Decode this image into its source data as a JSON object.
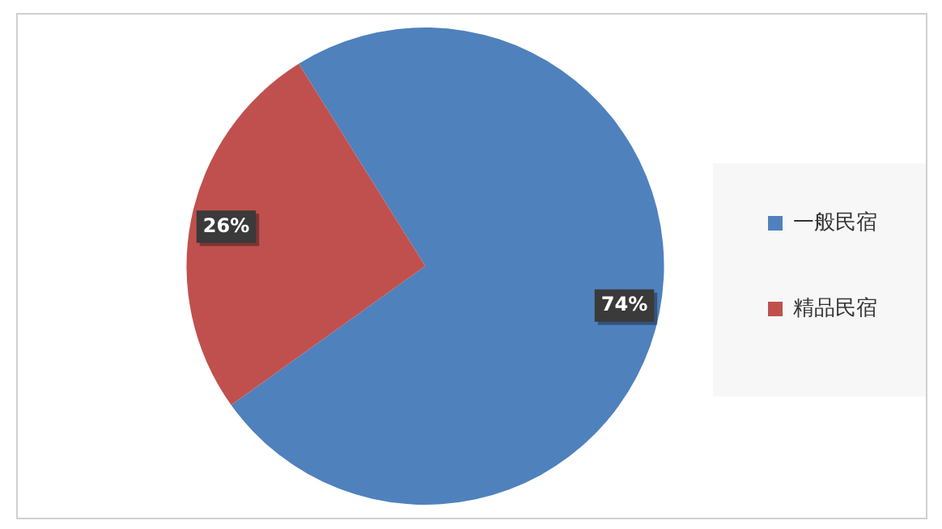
{
  "chart_data": {
    "type": "pie",
    "categories": [
      "一般民宿",
      "精品民宿"
    ],
    "values": [
      74,
      26
    ],
    "colors": [
      "#4f81bd",
      "#c0504d"
    ],
    "value_labels": [
      "74%",
      "26%"
    ],
    "legend": "right"
  }
}
